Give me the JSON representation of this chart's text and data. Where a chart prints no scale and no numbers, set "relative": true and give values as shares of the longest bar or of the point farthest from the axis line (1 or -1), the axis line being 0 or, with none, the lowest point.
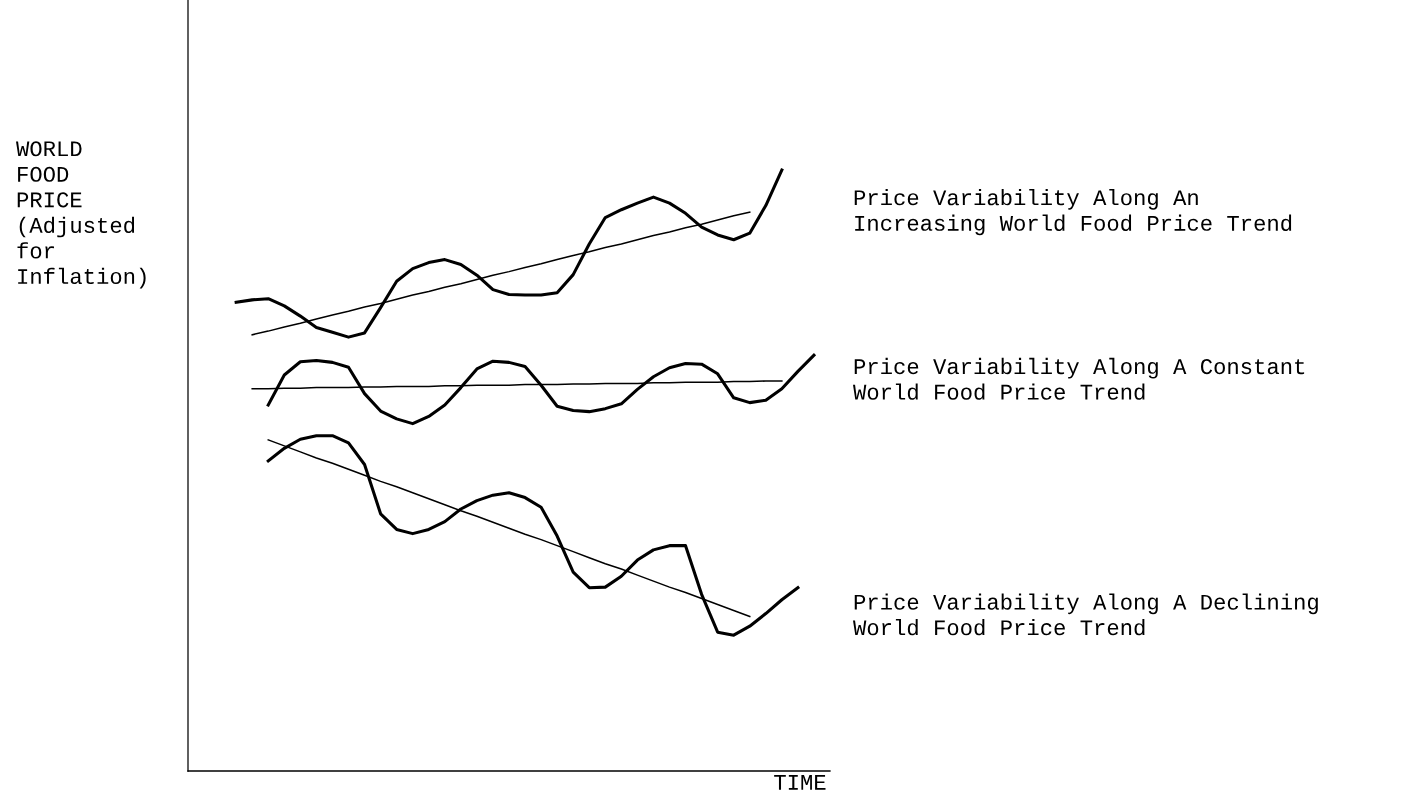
{
  "chart_data": {
    "type": "line",
    "relative": true,
    "xlabel": "TIME",
    "ylabel": "WORLD\nFOOD\nPRICE\n(Adjusted\nfor\nInflation)",
    "tick_labels": false,
    "line_style": "solid",
    "marker": "none",
    "categories": [
      null,
      null,
      null,
      null,
      null,
      null,
      null,
      null,
      null,
      null,
      null,
      null,
      null,
      null,
      null,
      null,
      null,
      null,
      null,
      null,
      null,
      null,
      null,
      null,
      null,
      null,
      null,
      null,
      null,
      null,
      null,
      null,
      null,
      null,
      null,
      null,
      null,
      null,
      null,
      null,
      null
    ],
    "series": [
      {
        "name": "Price Variability Along An\nIncreasing World Food Price Trend",
        "color": "#000000",
        "values": [
          null,
          null,
          null,
          0.78,
          0.784,
          0.786,
          0.774,
          0.757,
          0.738,
          0.73,
          0.722,
          0.729,
          0.771,
          0.815,
          0.836,
          0.846,
          0.851,
          0.843,
          0.825,
          0.801,
          0.793,
          0.792,
          0.792,
          0.796,
          0.826,
          0.877,
          0.921,
          0.934,
          0.945,
          0.955,
          0.945,
          0.928,
          0.905,
          0.892,
          0.884,
          0.895,
          0.941,
          1.0,
          null,
          null,
          null
        ]
      },
      {
        "type": "line",
        "color": "#000000",
        "values": [
          null,
          null,
          null,
          null,
          0.726,
          0.732,
          0.739,
          0.745,
          0.752,
          0.759,
          0.765,
          0.772,
          0.778,
          0.785,
          0.792,
          0.798,
          0.805,
          0.811,
          0.818,
          0.825,
          0.831,
          0.838,
          0.844,
          0.851,
          0.858,
          0.864,
          0.871,
          0.877,
          0.884,
          0.891,
          0.897,
          0.904,
          0.91,
          0.917,
          0.924,
          0.93,
          null,
          null,
          null,
          null,
          null
        ]
      },
      {
        "name": "Price Variability Along A Constant\nWorld Food Price Trend",
        "color": "#000000",
        "values": [
          null,
          null,
          null,
          null,
          null,
          0.609,
          0.659,
          0.681,
          0.683,
          0.68,
          0.672,
          0.628,
          0.599,
          0.586,
          0.578,
          0.59,
          0.609,
          0.638,
          0.669,
          0.682,
          0.68,
          0.673,
          0.642,
          0.607,
          0.6,
          0.598,
          0.603,
          0.611,
          0.635,
          0.656,
          0.671,
          0.678,
          0.677,
          0.661,
          0.621,
          0.613,
          0.617,
          0.636,
          0.665,
          0.692,
          null
        ]
      },
      {
        "type": "line",
        "color": "#000000",
        "values": [
          null,
          null,
          null,
          null,
          0.636,
          0.636,
          0.637,
          0.637,
          0.638,
          0.638,
          0.638,
          0.639,
          0.639,
          0.64,
          0.64,
          0.64,
          0.641,
          0.641,
          0.642,
          0.642,
          0.642,
          0.643,
          0.643,
          0.643,
          0.644,
          0.644,
          0.645,
          0.645,
          0.645,
          0.646,
          0.646,
          0.647,
          0.647,
          0.647,
          0.648,
          0.648,
          0.649,
          0.649,
          null,
          null,
          null
        ]
      },
      {
        "name": "Price Variability Along A Declining\nWorld Food Price Trend",
        "color": "#000000",
        "values": [
          null,
          null,
          null,
          null,
          null,
          0.516,
          0.537,
          0.552,
          0.558,
          0.558,
          0.546,
          0.51,
          0.428,
          0.402,
          0.395,
          0.402,
          0.415,
          0.436,
          0.45,
          0.459,
          0.463,
          0.455,
          0.439,
          0.391,
          0.331,
          0.305,
          0.306,
          0.324,
          0.351,
          0.368,
          0.375,
          0.375,
          0.294,
          0.231,
          0.226,
          0.241,
          0.262,
          0.285,
          0.305,
          null,
          null
        ]
      },
      {
        "type": "line",
        "color": "#000000",
        "values": [
          null,
          null,
          null,
          null,
          null,
          0.551,
          0.541,
          0.531,
          0.521,
          0.512,
          0.502,
          0.492,
          0.482,
          0.473,
          0.463,
          0.453,
          0.443,
          0.433,
          0.424,
          0.414,
          0.404,
          0.394,
          0.385,
          0.375,
          0.365,
          0.355,
          0.345,
          0.336,
          0.326,
          0.316,
          0.306,
          0.297,
          0.287,
          0.277,
          0.267,
          0.257,
          null,
          null,
          null,
          null,
          null
        ]
      }
    ]
  }
}
